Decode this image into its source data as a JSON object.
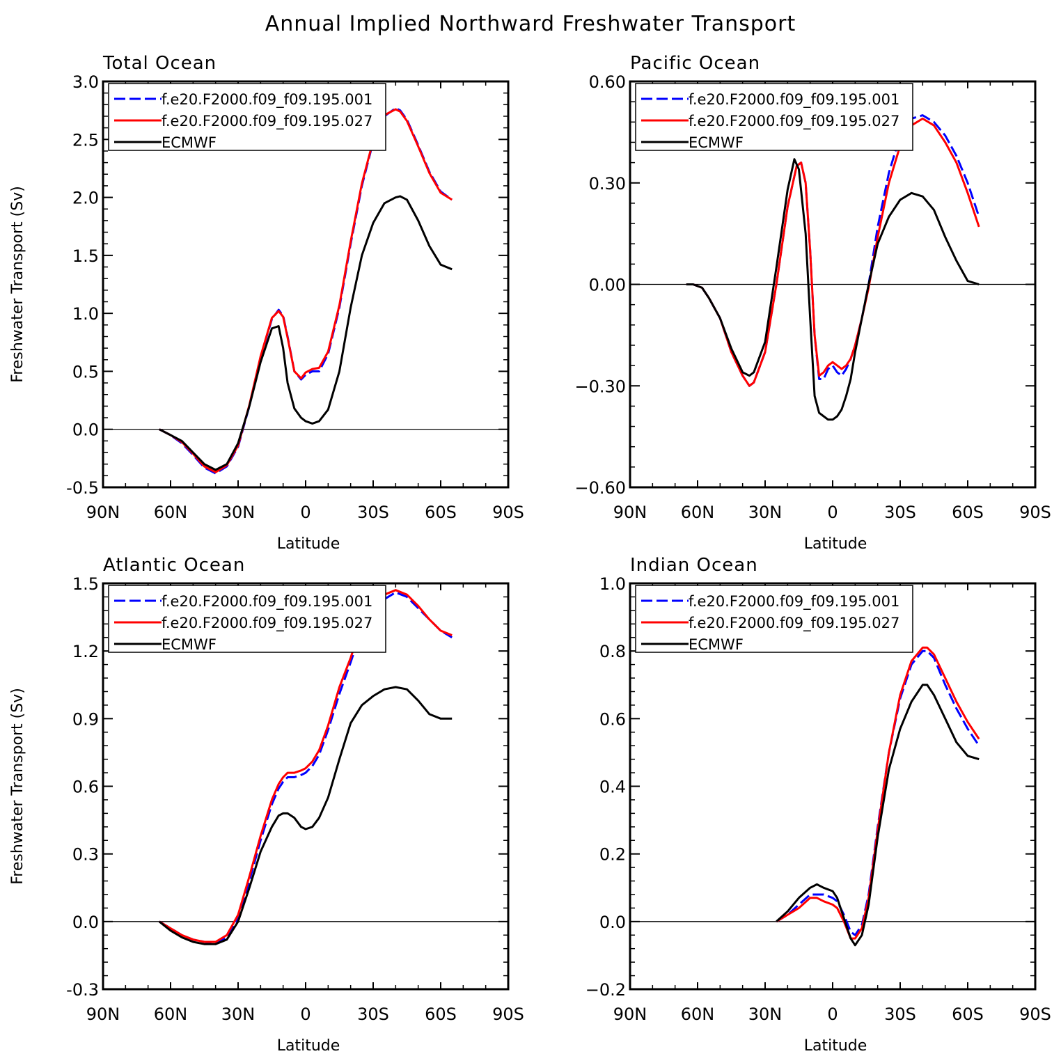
{
  "figure_title": "Annual Implied Northward Freshwater Transport",
  "x_ticks": [
    "90N",
    "60N",
    "30N",
    "0",
    "30S",
    "60S",
    "90S"
  ],
  "colors": {
    "model1": "#0000ff",
    "model2": "#ff0000",
    "obs": "#000000"
  },
  "legend": [
    "f.e20.F2000.f09_f09.195.001",
    "f.e20.F2000.f09_f09.195.027",
    "ECMWF"
  ],
  "chart_data": [
    {
      "type": "line",
      "title": "Total Ocean",
      "xlabel": "Latitude",
      "ylabel": "Freshwater Transport (Sv)",
      "xlim": [
        90,
        -90
      ],
      "ylim": [
        -0.5,
        3.0
      ],
      "yticks": [
        "-0.5",
        "0.0",
        "0.5",
        "1.0",
        "1.5",
        "2.0",
        "2.5",
        "3.0"
      ],
      "legend_position": "top-left",
      "series": [
        {
          "name": "f.e20.F2000.f09_f09.195.001",
          "style": "dashed",
          "x": [
            65,
            60,
            55,
            50,
            45,
            40,
            35,
            30,
            25,
            20,
            15,
            12,
            10,
            8,
            5,
            2,
            0,
            -3,
            -6,
            -10,
            -15,
            -20,
            -25,
            -30,
            -35,
            -40,
            -42,
            -45,
            -50,
            -55,
            -60,
            -65
          ],
          "y": [
            0.0,
            -0.05,
            -0.12,
            -0.22,
            -0.33,
            -0.38,
            -0.32,
            -0.15,
            0.2,
            0.62,
            0.95,
            1.03,
            0.98,
            0.8,
            0.5,
            0.43,
            0.47,
            0.5,
            0.5,
            0.65,
            1.05,
            1.6,
            2.1,
            2.48,
            2.7,
            2.77,
            2.75,
            2.67,
            2.45,
            2.22,
            2.05,
            1.98
          ]
        },
        {
          "name": "f.e20.F2000.f09_f09.195.027",
          "style": "solid",
          "x": [
            65,
            60,
            55,
            50,
            45,
            40,
            35,
            30,
            25,
            20,
            15,
            12,
            10,
            8,
            5,
            2,
            0,
            -3,
            -6,
            -10,
            -15,
            -20,
            -25,
            -30,
            -35,
            -40,
            -42,
            -45,
            -50,
            -55,
            -60,
            -65
          ],
          "y": [
            0.0,
            -0.05,
            -0.11,
            -0.21,
            -0.32,
            -0.37,
            -0.31,
            -0.14,
            0.21,
            0.63,
            0.96,
            1.02,
            0.97,
            0.79,
            0.5,
            0.44,
            0.49,
            0.52,
            0.53,
            0.67,
            1.07,
            1.62,
            2.12,
            2.49,
            2.71,
            2.76,
            2.74,
            2.66,
            2.44,
            2.21,
            2.04,
            1.98
          ]
        },
        {
          "name": "ECMWF",
          "style": "solid",
          "x": [
            65,
            60,
            55,
            50,
            45,
            40,
            35,
            30,
            25,
            20,
            15,
            12,
            10,
            8,
            5,
            2,
            0,
            -3,
            -6,
            -10,
            -15,
            -20,
            -25,
            -30,
            -35,
            -40,
            -42,
            -45,
            -50,
            -55,
            -60,
            -65
          ],
          "y": [
            0.0,
            -0.05,
            -0.1,
            -0.2,
            -0.3,
            -0.35,
            -0.3,
            -0.12,
            0.2,
            0.58,
            0.87,
            0.89,
            0.7,
            0.4,
            0.18,
            0.1,
            0.07,
            0.05,
            0.07,
            0.17,
            0.5,
            1.05,
            1.5,
            1.78,
            1.95,
            2.0,
            2.01,
            1.98,
            1.8,
            1.58,
            1.42,
            1.38
          ]
        }
      ]
    },
    {
      "type": "line",
      "title": "Pacific Ocean",
      "xlabel": "Latitude",
      "ylabel": "",
      "xlim": [
        90,
        -90
      ],
      "ylim": [
        -0.6,
        0.6
      ],
      "yticks": [
        "−0.60",
        "−0.30",
        "0.00",
        "0.30",
        "0.60"
      ],
      "legend_position": "top-left",
      "series": [
        {
          "name": "f.e20.F2000.f09_f09.195.001",
          "style": "dashed",
          "x": [
            65,
            62,
            58,
            55,
            50,
            45,
            40,
            37,
            35,
            30,
            25,
            20,
            16,
            14,
            12,
            10,
            8,
            6,
            4,
            2,
            0,
            -2,
            -4,
            -6,
            -8,
            -10,
            -13,
            -16,
            -20,
            -25,
            -30,
            -35,
            -40,
            -45,
            -50,
            -55,
            -60,
            -65
          ],
          "y": [
            0.0,
            0.0,
            -0.01,
            -0.04,
            -0.1,
            -0.2,
            -0.27,
            -0.3,
            -0.29,
            -0.2,
            0.0,
            0.23,
            0.35,
            0.36,
            0.3,
            0.1,
            -0.15,
            -0.28,
            -0.28,
            -0.25,
            -0.24,
            -0.26,
            -0.27,
            -0.25,
            -0.22,
            -0.18,
            -0.1,
            0.0,
            0.17,
            0.33,
            0.44,
            0.49,
            0.5,
            0.48,
            0.44,
            0.38,
            0.3,
            0.2
          ]
        },
        {
          "name": "f.e20.F2000.f09_f09.195.027",
          "style": "solid",
          "x": [
            65,
            62,
            58,
            55,
            50,
            45,
            40,
            37,
            35,
            30,
            25,
            20,
            16,
            14,
            12,
            10,
            8,
            6,
            4,
            2,
            0,
            -2,
            -4,
            -6,
            -8,
            -10,
            -13,
            -16,
            -20,
            -25,
            -30,
            -35,
            -40,
            -45,
            -50,
            -55,
            -60,
            -65
          ],
          "y": [
            0.0,
            0.0,
            -0.01,
            -0.04,
            -0.1,
            -0.2,
            -0.27,
            -0.3,
            -0.29,
            -0.2,
            0.0,
            0.23,
            0.35,
            0.36,
            0.3,
            0.1,
            -0.15,
            -0.27,
            -0.26,
            -0.24,
            -0.23,
            -0.24,
            -0.25,
            -0.24,
            -0.22,
            -0.18,
            -0.1,
            -0.01,
            0.14,
            0.3,
            0.41,
            0.47,
            0.49,
            0.47,
            0.42,
            0.36,
            0.27,
            0.17
          ]
        },
        {
          "name": "ECMWF",
          "style": "solid",
          "x": [
            65,
            62,
            58,
            55,
            50,
            45,
            40,
            37,
            35,
            30,
            25,
            20,
            17,
            15,
            12,
            10,
            8,
            6,
            4,
            2,
            0,
            -2,
            -4,
            -6,
            -8,
            -10,
            -13,
            -16,
            -20,
            -25,
            -30,
            -35,
            -40,
            -45,
            -50,
            -55,
            -60,
            -65
          ],
          "y": [
            0.0,
            0.0,
            -0.01,
            -0.04,
            -0.1,
            -0.19,
            -0.26,
            -0.27,
            -0.26,
            -0.17,
            0.05,
            0.28,
            0.37,
            0.34,
            0.15,
            -0.1,
            -0.33,
            -0.38,
            -0.39,
            -0.4,
            -0.4,
            -0.39,
            -0.37,
            -0.33,
            -0.28,
            -0.2,
            -0.1,
            0.0,
            0.12,
            0.2,
            0.25,
            0.27,
            0.26,
            0.22,
            0.14,
            0.07,
            0.01,
            0.0
          ]
        }
      ]
    },
    {
      "type": "line",
      "title": "Atlantic Ocean",
      "xlabel": "Latitude",
      "ylabel": "Freshwater Transport (Sv)",
      "xlim": [
        90,
        -90
      ],
      "ylim": [
        -0.3,
        1.5
      ],
      "yticks": [
        "-0.3",
        "0.0",
        "0.3",
        "0.6",
        "0.9",
        "1.2",
        "1.5"
      ],
      "legend_position": "top-left",
      "series": [
        {
          "name": "f.e20.F2000.f09_f09.195.001",
          "style": "dashed",
          "x": [
            65,
            60,
            55,
            50,
            45,
            40,
            35,
            30,
            25,
            20,
            15,
            12,
            10,
            8,
            5,
            2,
            0,
            -3,
            -6,
            -10,
            -15,
            -20,
            -25,
            -30,
            -35,
            -40,
            -45,
            -50,
            -55,
            -60,
            -65
          ],
          "y": [
            0.0,
            -0.03,
            -0.06,
            -0.08,
            -0.09,
            -0.1,
            -0.07,
            0.02,
            0.18,
            0.36,
            0.52,
            0.59,
            0.62,
            0.64,
            0.64,
            0.65,
            0.66,
            0.69,
            0.74,
            0.85,
            1.01,
            1.15,
            1.3,
            1.39,
            1.43,
            1.46,
            1.44,
            1.39,
            1.34,
            1.29,
            1.26
          ]
        },
        {
          "name": "f.e20.F2000.f09_f09.195.027",
          "style": "solid",
          "x": [
            65,
            60,
            55,
            50,
            45,
            40,
            35,
            30,
            25,
            20,
            15,
            12,
            10,
            8,
            5,
            2,
            0,
            -3,
            -6,
            -10,
            -15,
            -20,
            -25,
            -30,
            -35,
            -40,
            -45,
            -50,
            -55,
            -60,
            -65
          ],
          "y": [
            0.0,
            -0.03,
            -0.06,
            -0.08,
            -0.09,
            -0.09,
            -0.06,
            0.03,
            0.2,
            0.38,
            0.54,
            0.61,
            0.64,
            0.66,
            0.66,
            0.67,
            0.68,
            0.71,
            0.76,
            0.87,
            1.04,
            1.17,
            1.32,
            1.41,
            1.45,
            1.47,
            1.45,
            1.4,
            1.34,
            1.29,
            1.27
          ]
        },
        {
          "name": "ECMWF",
          "style": "solid",
          "x": [
            65,
            60,
            55,
            50,
            45,
            40,
            35,
            30,
            25,
            20,
            15,
            12,
            10,
            8,
            5,
            2,
            0,
            -3,
            -6,
            -10,
            -15,
            -20,
            -25,
            -30,
            -35,
            -40,
            -45,
            -50,
            -55,
            -60,
            -65
          ],
          "y": [
            0.0,
            -0.04,
            -0.07,
            -0.09,
            -0.1,
            -0.1,
            -0.08,
            0.0,
            0.15,
            0.31,
            0.42,
            0.47,
            0.48,
            0.48,
            0.46,
            0.42,
            0.41,
            0.42,
            0.46,
            0.55,
            0.72,
            0.88,
            0.96,
            1.0,
            1.03,
            1.04,
            1.03,
            0.98,
            0.92,
            0.9,
            0.9
          ]
        }
      ]
    },
    {
      "type": "line",
      "title": "Indian Ocean",
      "xlabel": "Latitude",
      "ylabel": "",
      "xlim": [
        90,
        -90
      ],
      "ylim": [
        -0.2,
        1.0
      ],
      "yticks": [
        "−0.2",
        "0.0",
        "0.2",
        "0.4",
        "0.6",
        "0.8",
        "1.0"
      ],
      "legend_position": "top-left",
      "series": [
        {
          "name": "f.e20.F2000.f09_f09.195.001",
          "style": "dashed",
          "x": [
            25,
            20,
            15,
            10,
            7,
            4,
            0,
            -2,
            -5,
            -8,
            -10,
            -13,
            -16,
            -20,
            -25,
            -30,
            -35,
            -40,
            -42,
            -45,
            -50,
            -55,
            -60,
            -65
          ],
          "y": [
            0.0,
            0.02,
            0.05,
            0.08,
            0.08,
            0.08,
            0.07,
            0.06,
            0.02,
            -0.03,
            -0.04,
            -0.01,
            0.08,
            0.28,
            0.5,
            0.66,
            0.76,
            0.8,
            0.8,
            0.78,
            0.7,
            0.63,
            0.57,
            0.52
          ]
        },
        {
          "name": "f.e20.F2000.f09_f09.195.027",
          "style": "solid",
          "x": [
            25,
            20,
            15,
            10,
            7,
            4,
            0,
            -2,
            -5,
            -8,
            -10,
            -13,
            -16,
            -20,
            -25,
            -30,
            -35,
            -40,
            -42,
            -45,
            -50,
            -55,
            -60,
            -65
          ],
          "y": [
            0.0,
            0.02,
            0.04,
            0.07,
            0.07,
            0.06,
            0.05,
            0.04,
            0.0,
            -0.05,
            -0.05,
            -0.02,
            0.07,
            0.27,
            0.5,
            0.67,
            0.77,
            0.81,
            0.81,
            0.79,
            0.72,
            0.65,
            0.59,
            0.54
          ]
        },
        {
          "name": "ECMWF",
          "style": "solid",
          "x": [
            25,
            20,
            15,
            10,
            7,
            4,
            0,
            -2,
            -5,
            -8,
            -10,
            -13,
            -16,
            -20,
            -25,
            -30,
            -35,
            -40,
            -42,
            -45,
            -50,
            -55,
            -60,
            -65
          ],
          "y": [
            0.0,
            0.03,
            0.07,
            0.1,
            0.11,
            0.1,
            0.09,
            0.07,
            0.01,
            -0.05,
            -0.07,
            -0.04,
            0.05,
            0.25,
            0.45,
            0.57,
            0.65,
            0.7,
            0.7,
            0.67,
            0.6,
            0.53,
            0.49,
            0.48
          ]
        }
      ]
    }
  ]
}
